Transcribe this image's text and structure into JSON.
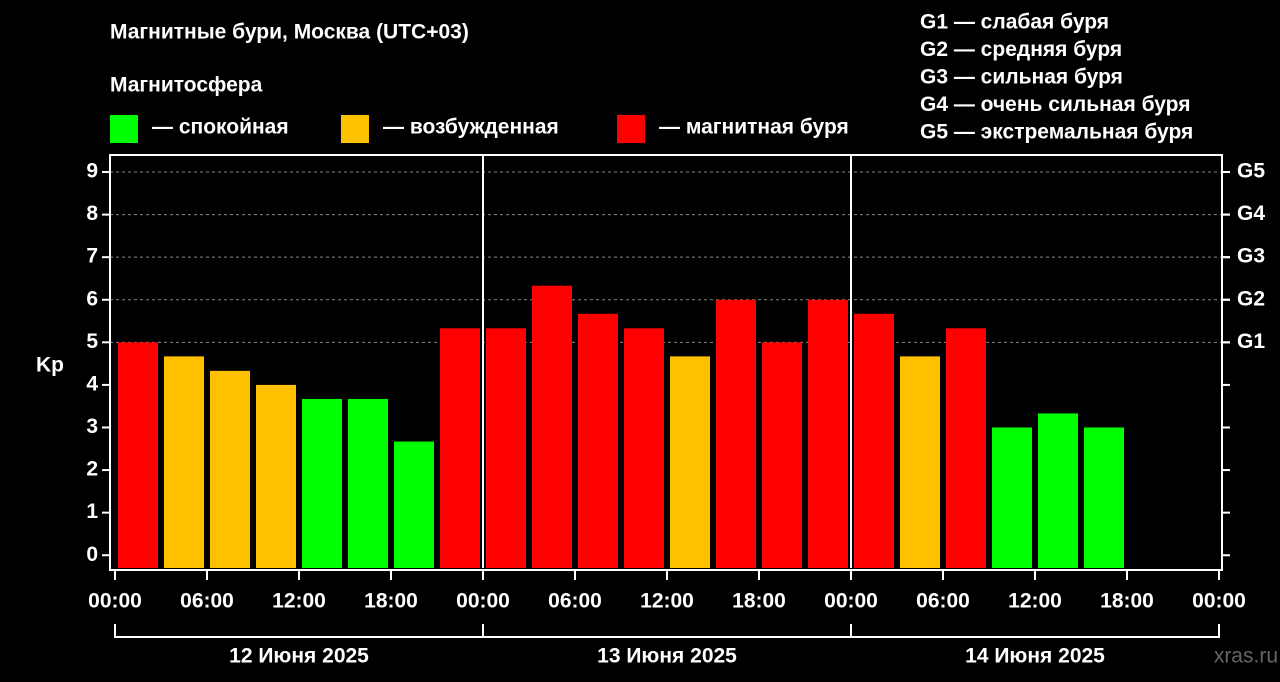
{
  "chart_data": {
    "type": "bar",
    "title": "Магнитные бури, Москва (UTC+03)",
    "legend_title": "Магнитосфера",
    "y_label": "Kp",
    "storm_levels": [
      "G1 — слабая буря",
      "G2 — средняя буря",
      "G3 — сильная буря",
      "G4 — очень сильная буря",
      "G5 — экстремальная буря"
    ],
    "x": [
      0,
      3,
      6,
      9,
      12,
      15,
      18,
      21,
      24,
      27,
      30,
      33,
      36,
      39,
      42,
      45,
      48,
      51,
      54,
      57,
      60,
      63
    ],
    "bar_width": 3,
    "series": [
      {
        "name": "— спокойная",
        "color": "#00ff00",
        "values": [
          null,
          null,
          null,
          null,
          3.67,
          3.67,
          2.67,
          null,
          null,
          null,
          null,
          null,
          null,
          null,
          null,
          null,
          null,
          null,
          null,
          3.0,
          3.33,
          3.0
        ]
      },
      {
        "name": "— возбужденная",
        "color": "#ffc000",
        "values": [
          null,
          4.67,
          4.33,
          4.0,
          null,
          null,
          null,
          null,
          null,
          null,
          null,
          null,
          4.67,
          null,
          null,
          null,
          null,
          4.67,
          null,
          null,
          null,
          null
        ]
      },
      {
        "name": "— магнитная буря",
        "color": "#ff0000",
        "values": [
          5.0,
          null,
          null,
          null,
          null,
          null,
          null,
          5.33,
          5.33,
          6.33,
          5.67,
          5.33,
          null,
          6.0,
          5.0,
          6.0,
          5.67,
          null,
          5.33,
          null,
          null,
          null
        ]
      }
    ],
    "xlim": [
      0,
      72
    ],
    "xticks": [
      {
        "value": 0,
        "label": "00:00"
      },
      {
        "value": 6,
        "label": "06:00"
      },
      {
        "value": 12,
        "label": "12:00"
      },
      {
        "value": 18,
        "label": "18:00"
      },
      {
        "value": 24,
        "label": "00:00"
      },
      {
        "value": 30,
        "label": "06:00"
      },
      {
        "value": 36,
        "label": "12:00"
      },
      {
        "value": 42,
        "label": "18:00"
      },
      {
        "value": 48,
        "label": "00:00"
      },
      {
        "value": 54,
        "label": "06:00"
      },
      {
        "value": 60,
        "label": "12:00"
      },
      {
        "value": 66,
        "label": "18:00"
      },
      {
        "value": 72,
        "label": "00:00"
      }
    ],
    "day_bounds": [
      0,
      24,
      48,
      72
    ],
    "day_labels": [
      "12 Июня 2025",
      "13 Июня 2025",
      "14 Июня 2025"
    ],
    "ylim": [
      -0.3,
      9.4
    ],
    "yticks": [
      0,
      1,
      2,
      3,
      4,
      5,
      6,
      7,
      8,
      9
    ],
    "y2lim": [
      -0.3,
      9.4
    ],
    "y2ticks": [
      {
        "value": 5,
        "label": "G1"
      },
      {
        "value": 6,
        "label": "G2"
      },
      {
        "value": 7,
        "label": "G3"
      },
      {
        "value": 8,
        "label": "G4"
      },
      {
        "value": 9,
        "label": "G5"
      }
    ],
    "grid": true,
    "source": "xras.ru"
  }
}
